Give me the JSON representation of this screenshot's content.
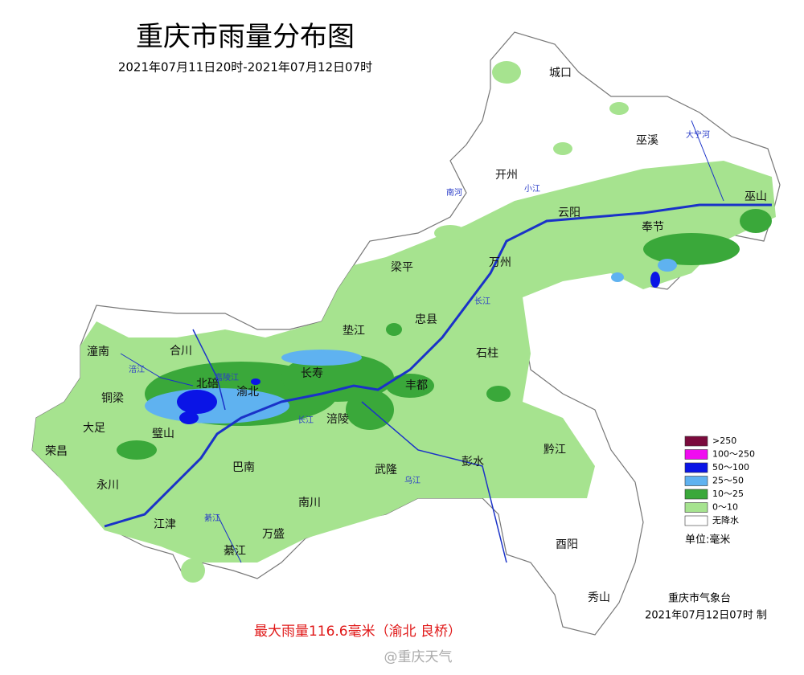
{
  "header": {
    "title": "重庆市雨量分布图",
    "subtitle": "2021年07月11日20时-2021年07月12日07时"
  },
  "districts": [
    "城口",
    "巫溪",
    "开州",
    "巫山",
    "云阳",
    "奉节",
    "梁平",
    "万州",
    "忠县",
    "垫江",
    "石柱",
    "潼南",
    "合川",
    "长寿",
    "丰都",
    "渝北",
    "北碚",
    "铜梁",
    "大足",
    "璧山",
    "涪陵",
    "荣昌",
    "彭水",
    "黔江",
    "巴南",
    "武隆",
    "永川",
    "南川",
    "江津",
    "万盛",
    "綦江",
    "酉阳",
    "秀山"
  ],
  "rivers": [
    "长江",
    "乌江",
    "嘉陵江",
    "涪江",
    "大宁河",
    "南河",
    "小江",
    "綦江"
  ],
  "legend": {
    "items": [
      {
        "label": ">250",
        "color": "#7a0a3c"
      },
      {
        "label": "100～250",
        "color": "#f00cf0"
      },
      {
        "label": "50～100",
        "color": "#0a14e6"
      },
      {
        "label": "25～50",
        "color": "#5fb2f0"
      },
      {
        "label": "10～25",
        "color": "#3aa83a"
      },
      {
        "label": "0～10",
        "color": "#a6e38f"
      },
      {
        "label": "无降水",
        "color": "#ffffff"
      }
    ],
    "unit": "单位:毫米"
  },
  "footer": {
    "agency": "重庆市气象台",
    "issued": "2021年07月12日07时  制",
    "max_rain": "最大雨量116.6毫米（渝北 良桥）",
    "watermark": "@重庆天气"
  }
}
